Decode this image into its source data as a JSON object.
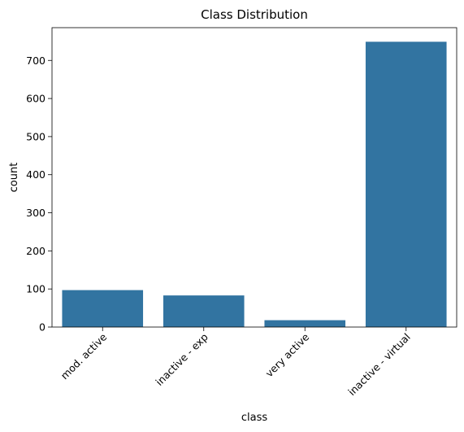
{
  "chart_data": {
    "type": "bar",
    "title": "Class Distribution",
    "xlabel": "class",
    "ylabel": "count",
    "categories": [
      "mod. active",
      "inactive - exp",
      "very active",
      "inactive - virtual"
    ],
    "values": [
      97,
      83,
      18,
      749
    ],
    "ylim": [
      0,
      786
    ],
    "yticks": [
      0,
      100,
      200,
      300,
      400,
      500,
      600,
      700
    ],
    "bar_color": "#3274a1",
    "grid": false,
    "legend": "none",
    "xtick_rotation": 45
  }
}
